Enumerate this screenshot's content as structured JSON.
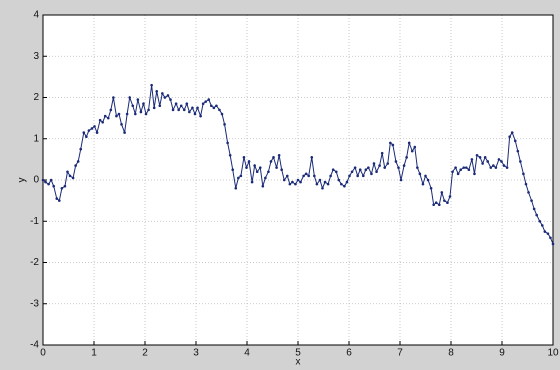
{
  "chart_data": {
    "type": "line",
    "xlabel": "x",
    "ylabel": "y",
    "x": [
      0,
      0.05,
      0.11,
      0.16,
      0.21,
      0.27,
      0.32,
      0.37,
      0.43,
      0.48,
      0.53,
      0.59,
      0.64,
      0.69,
      0.74,
      0.8,
      0.85,
      0.9,
      0.96,
      1.01,
      1.06,
      1.12,
      1.17,
      1.22,
      1.28,
      1.33,
      1.38,
      1.44,
      1.49,
      1.54,
      1.6,
      1.65,
      1.7,
      1.76,
      1.81,
      1.86,
      1.92,
      1.97,
      2.02,
      2.07,
      2.13,
      2.18,
      2.23,
      2.29,
      2.34,
      2.39,
      2.45,
      2.5,
      2.55,
      2.61,
      2.66,
      2.71,
      2.77,
      2.82,
      2.87,
      2.93,
      2.98,
      3.03,
      3.09,
      3.14,
      3.19,
      3.25,
      3.3,
      3.35,
      3.4,
      3.46,
      3.51,
      3.56,
      3.62,
      3.67,
      3.72,
      3.78,
      3.83,
      3.88,
      3.94,
      3.99,
      4.04,
      4.1,
      4.15,
      4.2,
      4.26,
      4.31,
      4.36,
      4.42,
      4.47,
      4.52,
      4.58,
      4.63,
      4.68,
      4.73,
      4.79,
      4.84,
      4.89,
      4.95,
      5.0,
      5.05,
      5.11,
      5.16,
      5.21,
      5.27,
      5.32,
      5.37,
      5.43,
      5.48,
      5.53,
      5.59,
      5.64,
      5.69,
      5.75,
      5.8,
      5.85,
      5.91,
      5.96,
      6.01,
      6.06,
      6.12,
      6.17,
      6.22,
      6.28,
      6.33,
      6.38,
      6.44,
      6.49,
      6.54,
      6.6,
      6.65,
      6.7,
      6.76,
      6.81,
      6.86,
      6.92,
      6.97,
      7.02,
      7.08,
      7.13,
      7.18,
      7.24,
      7.29,
      7.34,
      7.39,
      7.45,
      7.5,
      7.55,
      7.61,
      7.66,
      7.71,
      7.77,
      7.82,
      7.87,
      7.93,
      7.98,
      8.03,
      8.09,
      8.14,
      8.19,
      8.25,
      8.3,
      8.35,
      8.41,
      8.46,
      8.51,
      8.57,
      8.62,
      8.67,
      8.72,
      8.78,
      8.83,
      8.88,
      8.94,
      8.99,
      9.04,
      9.1,
      9.15,
      9.2,
      9.26,
      9.31,
      9.36,
      9.42,
      9.47,
      9.52,
      9.58,
      9.63,
      9.68,
      9.74,
      9.79,
      9.84,
      9.9,
      9.95,
      10.0
    ],
    "series": [
      {
        "color": "#1a2a78",
        "values": [
          0,
          -0.05,
          -0.1,
          0,
          -0.15,
          -0.45,
          -0.5,
          -0.2,
          -0.15,
          0.2,
          0.1,
          0.05,
          0.35,
          0.45,
          0.75,
          1.15,
          1.05,
          1.2,
          1.25,
          1.3,
          1.15,
          1.45,
          1.4,
          1.55,
          1.5,
          1.7,
          2.0,
          1.55,
          1.6,
          1.35,
          1.15,
          1.6,
          2.0,
          1.8,
          1.6,
          1.95,
          1.65,
          1.85,
          1.6,
          1.7,
          2.3,
          1.75,
          2.15,
          1.8,
          2.1,
          2.0,
          2.05,
          1.95,
          1.7,
          1.85,
          1.7,
          1.8,
          1.7,
          1.85,
          1.65,
          1.75,
          1.6,
          1.75,
          1.55,
          1.85,
          1.9,
          1.95,
          1.8,
          1.75,
          1.8,
          1.7,
          1.6,
          1.35,
          0.9,
          0.6,
          0.25,
          -0.2,
          0.05,
          0.1,
          0.55,
          0.3,
          0.45,
          -0.05,
          0.35,
          0.2,
          0.3,
          -0.15,
          0.05,
          0.2,
          0.45,
          0.55,
          0.3,
          0.6,
          0.25,
          0,
          0.1,
          -0.1,
          -0.05,
          -0.1,
          0,
          -0.05,
          0.1,
          0.15,
          0.1,
          0.55,
          0.1,
          -0.1,
          0,
          -0.2,
          -0.05,
          -0.1,
          0.1,
          0.25,
          0.2,
          0,
          -0.1,
          -0.15,
          -0.05,
          0.1,
          0.2,
          0.3,
          0.1,
          0.25,
          0.1,
          0.25,
          0.3,
          0.15,
          0.4,
          0.2,
          0.35,
          0.65,
          0.3,
          0.4,
          0.9,
          0.85,
          0.45,
          0.3,
          0,
          0.35,
          0.55,
          0.9,
          0.7,
          0.8,
          0.3,
          0.15,
          -0.1,
          0.1,
          0,
          -0.2,
          -0.6,
          -0.55,
          -0.6,
          -0.3,
          -0.5,
          -0.55,
          -0.4,
          0.2,
          0.3,
          0.15,
          0.25,
          0.3,
          0.3,
          0.25,
          0.5,
          0.15,
          0.6,
          0.55,
          0.4,
          0.55,
          0.45,
          0.3,
          0.35,
          0.3,
          0.5,
          0.45,
          0.35,
          0.3,
          1.05,
          1.15,
          0.95,
          0.7,
          0.45,
          0.15,
          -0.1,
          -0.3,
          -0.5,
          -0.7,
          -0.85,
          -1.0,
          -1.1,
          -1.25,
          -1.3,
          -1.4,
          -1.55
        ]
      }
    ],
    "xlim": [
      0,
      10
    ],
    "ylim": [
      -4,
      4
    ],
    "xticks": [
      0,
      1,
      2,
      3,
      4,
      5,
      6,
      7,
      8,
      9,
      10
    ],
    "yticks": [
      -4,
      -3,
      -2,
      -1,
      0,
      1,
      2,
      3,
      4
    ],
    "grid": true
  }
}
